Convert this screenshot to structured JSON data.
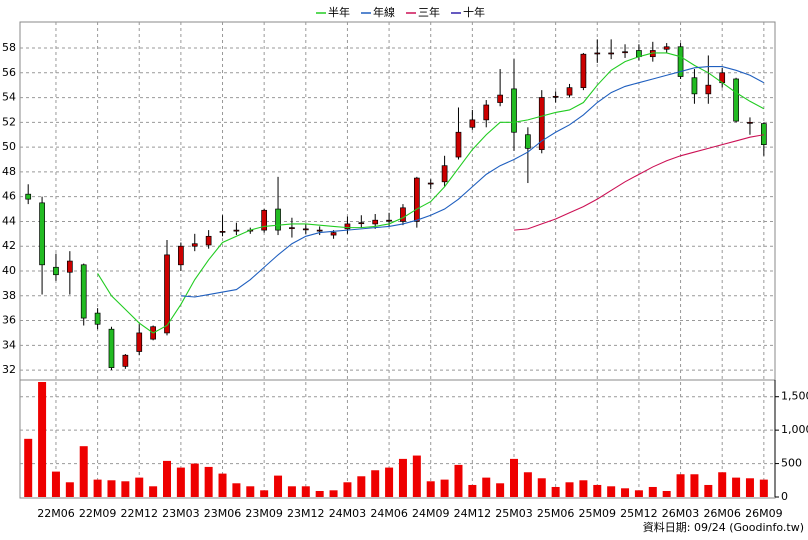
{
  "chart_data": {
    "type": "candlestick",
    "categories": [
      null,
      null,
      "22M06",
      null,
      null,
      "22M09",
      null,
      null,
      "22M12",
      null,
      null,
      "23M03",
      null,
      null,
      "23M06",
      null,
      null,
      "23M09",
      null,
      null,
      "23M12",
      null,
      null,
      "24M03",
      null,
      null,
      "24M06",
      null,
      null,
      "24M09",
      null,
      null,
      "24M12",
      null,
      null,
      "25M03",
      null,
      null,
      "25M06",
      null,
      null,
      "25M09",
      null,
      null,
      "25M12",
      null,
      null,
      "26M03",
      null,
      null,
      "26M06",
      null,
      null,
      "26M09"
    ],
    "open": [
      46.2,
      45.5,
      40.3,
      39.9,
      40.5,
      36.6,
      35.3,
      32.3,
      33.5,
      34.5,
      35.0,
      40.5,
      42.0,
      42.1,
      43.2,
      43.3,
      43.3,
      43.3,
      45.0,
      43.5,
      43.4,
      43.3,
      42.9,
      43.4,
      43.9,
      43.8,
      44.1,
      44.0,
      44.0,
      47.1,
      47.2,
      49.2,
      51.6,
      52.2,
      53.6,
      54.7,
      51.0,
      49.8,
      54.1,
      54.2,
      54.8,
      57.6,
      57.6,
      57.7,
      57.8,
      57.3,
      57.9,
      58.1,
      55.6,
      54.3,
      55.2,
      55.5,
      52.0,
      51.9
    ],
    "high": [
      47.0,
      46.0,
      41.4,
      41.6,
      40.6,
      37.0,
      35.5,
      33.3,
      35.7,
      35.6,
      42.5,
      42.3,
      43.0,
      43.3,
      44.5,
      43.9,
      43.5,
      45.0,
      47.6,
      44.3,
      43.8,
      43.6,
      43.3,
      44.4,
      44.5,
      44.6,
      44.7,
      45.4,
      47.6,
      47.4,
      49.3,
      53.2,
      53.0,
      53.8,
      56.3,
      57.1,
      51.6,
      54.6,
      54.5,
      55.1,
      57.6,
      58.7,
      58.7,
      58.3,
      58.3,
      58.5,
      58.4,
      58.4,
      56.3,
      57.4,
      56.4,
      55.6,
      52.4,
      52.0
    ],
    "low": [
      45.4,
      38.1,
      39.2,
      38.1,
      35.6,
      35.3,
      32.0,
      32.1,
      33.2,
      34.4,
      34.8,
      40.0,
      41.6,
      41.8,
      42.8,
      42.9,
      43.0,
      43.1,
      42.9,
      42.7,
      43.0,
      42.9,
      42.6,
      43.0,
      43.5,
      43.4,
      43.6,
      43.7,
      43.5,
      46.6,
      46.8,
      49.0,
      51.4,
      51.6,
      53.3,
      49.7,
      47.1,
      49.5,
      53.6,
      54.0,
      54.6,
      56.8,
      57.1,
      57.2,
      57.0,
      56.9,
      57.6,
      55.5,
      53.5,
      53.5,
      54.8,
      52.0,
      51.0,
      49.3
    ],
    "close": [
      45.8,
      40.5,
      39.7,
      40.8,
      36.2,
      35.7,
      32.2,
      33.2,
      35.0,
      35.5,
      41.3,
      42.0,
      42.2,
      42.8,
      43.2,
      43.3,
      43.3,
      44.9,
      43.3,
      43.5,
      43.4,
      43.3,
      43.1,
      43.8,
      43.9,
      44.1,
      44.1,
      45.1,
      47.5,
      47.1,
      48.5,
      51.2,
      52.2,
      53.4,
      54.2,
      51.2,
      49.9,
      54.0,
      54.1,
      54.8,
      57.5,
      57.6,
      57.6,
      57.7,
      57.3,
      57.8,
      58.1,
      55.7,
      54.3,
      55.0,
      56.0,
      52.1,
      52.0,
      50.2
    ],
    "up_color": "#cc0000",
    "down_color": "#22bb22",
    "series": [
      {
        "name": "半年",
        "color": "#22cc22",
        "values": [
          null,
          null,
          null,
          null,
          null,
          39.8,
          38.0,
          36.9,
          35.8,
          35.0,
          35.6,
          37.3,
          39.3,
          40.9,
          42.3,
          42.8,
          43.3,
          43.6,
          43.7,
          43.8,
          43.8,
          43.7,
          43.6,
          43.5,
          43.5,
          43.6,
          43.8,
          44.3,
          45.0,
          45.6,
          46.8,
          48.3,
          49.8,
          51.0,
          52.0,
          52.0,
          52.2,
          52.5,
          52.8,
          53.0,
          53.6,
          55.0,
          56.2,
          56.9,
          57.3,
          57.6,
          57.6,
          57.3,
          56.6,
          56.0,
          55.2,
          54.4,
          53.7,
          53.1
        ]
      },
      {
        "name": "年線",
        "color": "#1f5fbf",
        "values": [
          null,
          null,
          null,
          null,
          null,
          null,
          null,
          null,
          null,
          null,
          null,
          38.0,
          37.9,
          38.1,
          38.3,
          38.5,
          39.3,
          40.3,
          41.3,
          42.2,
          42.8,
          43.1,
          43.2,
          43.3,
          43.4,
          43.5,
          43.6,
          43.8,
          44.1,
          44.5,
          45.0,
          45.8,
          46.8,
          47.8,
          48.5,
          49.0,
          49.6,
          50.5,
          51.2,
          51.8,
          52.6,
          53.6,
          54.4,
          54.9,
          55.2,
          55.5,
          55.8,
          56.1,
          56.4,
          56.5,
          56.5,
          56.2,
          55.8,
          55.2
        ]
      },
      {
        "name": "三年",
        "color": "#cc1155",
        "values": [
          null,
          null,
          null,
          null,
          null,
          null,
          null,
          null,
          null,
          null,
          null,
          null,
          null,
          null,
          null,
          null,
          null,
          null,
          null,
          null,
          null,
          null,
          null,
          null,
          null,
          null,
          null,
          null,
          null,
          null,
          null,
          null,
          null,
          null,
          null,
          43.3,
          43.4,
          43.8,
          44.2,
          44.7,
          45.2,
          45.8,
          46.5,
          47.2,
          47.8,
          48.4,
          48.9,
          49.3,
          49.6,
          49.9,
          50.2,
          50.5,
          50.8,
          51.0
        ]
      },
      {
        "name": "十年",
        "color": "#3322aa",
        "values": [
          null,
          null,
          null,
          null,
          null,
          null,
          null,
          null,
          null,
          null,
          null,
          null,
          null,
          null,
          null,
          null,
          null,
          null,
          null,
          null,
          null,
          null,
          null,
          null,
          null,
          null,
          null,
          null,
          null,
          null,
          null,
          null,
          null,
          null,
          null,
          null,
          null,
          null,
          null,
          null,
          null,
          null,
          null,
          null,
          null,
          null,
          null,
          null,
          null,
          null,
          null,
          null,
          null,
          null
        ]
      }
    ],
    "ylim": [
      31.2,
      60.1
    ],
    "yticks": [
      32,
      34,
      36,
      38,
      40,
      42,
      44,
      46,
      48,
      50,
      52,
      54,
      56,
      58
    ],
    "volume": {
      "color": "#ee0000",
      "values": [
        870,
        1720,
        380,
        220,
        760,
        260,
        250,
        235,
        290,
        160,
        540,
        440,
        500,
        450,
        350,
        205,
        160,
        100,
        320,
        160,
        160,
        90,
        100,
        220,
        310,
        400,
        440,
        570,
        620,
        235,
        260,
        480,
        180,
        290,
        205,
        570,
        370,
        280,
        150,
        220,
        250,
        180,
        160,
        130,
        100,
        150,
        90,
        340,
        340,
        180,
        370,
        290,
        280,
        260
      ]
    },
    "y2lim": [
      0,
      1750
    ],
    "y2ticks": [
      0,
      500,
      {
        "value": 1000,
        "label": "1,000"
      },
      {
        "value": 1500,
        "label": "1,500"
      }
    ],
    "grid": true,
    "source": "資料日期: 09/24  (Goodinfo.tw)"
  }
}
